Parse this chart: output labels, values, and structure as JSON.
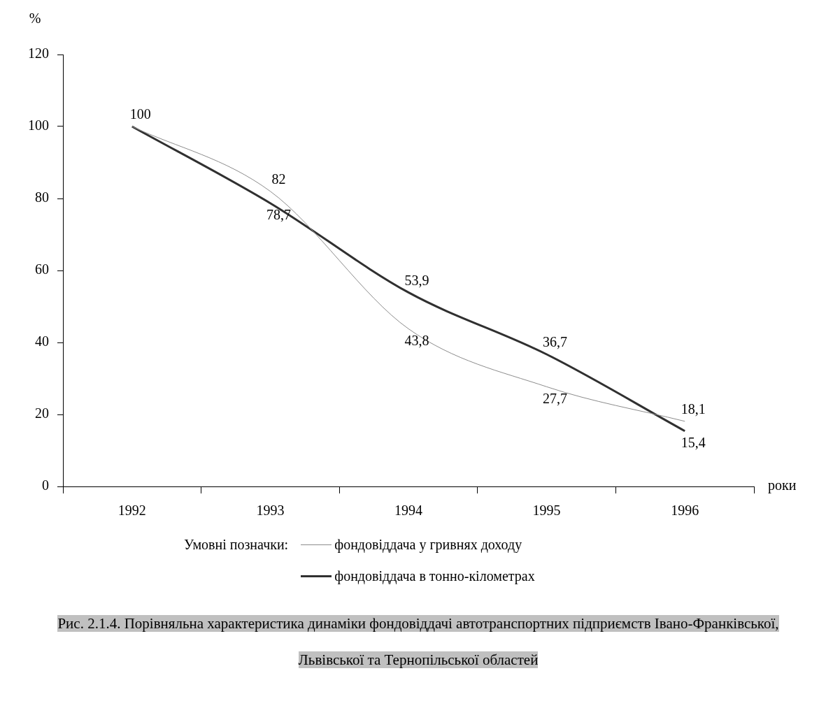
{
  "chart_data": {
    "type": "line",
    "categories": [
      "1992",
      "1993",
      "1994",
      "1995",
      "1996"
    ],
    "ylim": [
      0,
      120
    ],
    "yticks": [
      0,
      20,
      40,
      60,
      80,
      100,
      120
    ],
    "ylabel": "%",
    "xlabel": "роки",
    "grid": false,
    "legend": "bottom",
    "legend_title": "Умовні позначки:",
    "marker": "none",
    "series": [
      {
        "name": "фондовіддача у гривнях доходу",
        "color": "#8c8c8c",
        "values": [
          100,
          82,
          43.8,
          27.7,
          18.1
        ],
        "value_labels": [
          "100",
          "82",
          "43,8",
          "27,7",
          "18,1"
        ]
      },
      {
        "name": "фондовіддача в тонно-кілометрах",
        "color": "#303030",
        "values": [
          100,
          78.7,
          53.9,
          36.7,
          15.4
        ],
        "value_labels": [
          null,
          "78,7",
          "53,9",
          "36,7",
          "15,4"
        ]
      }
    ],
    "annotations": [
      "Рис. 2.1.4. Порівняльна характеристика динаміки фондовіддачі автотранспортних підприємств Івано-Франківської, Львівської та Тернопільської областей"
    ]
  }
}
